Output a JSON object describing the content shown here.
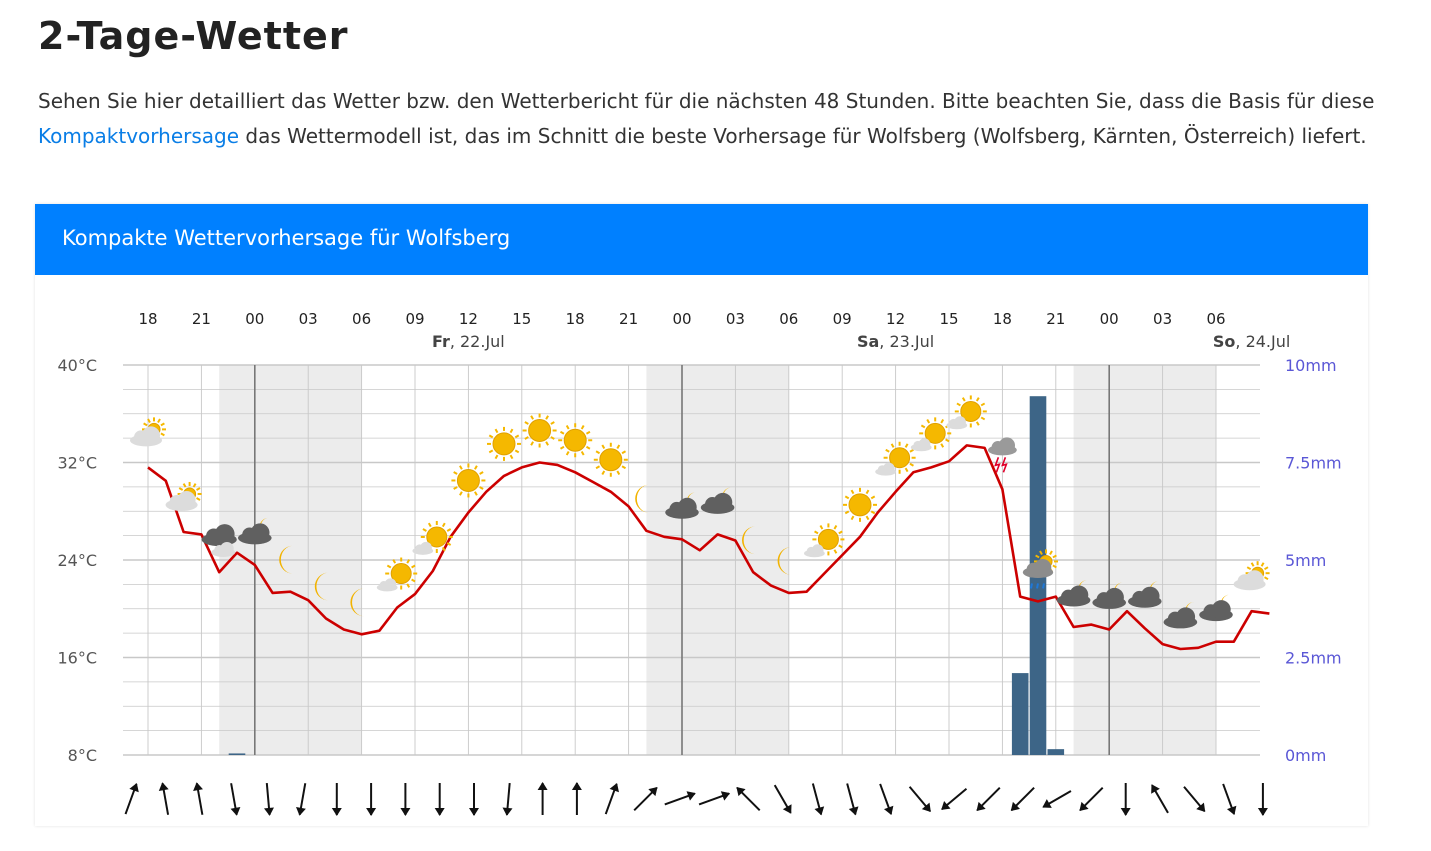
{
  "page": {
    "title": "2-Tage-Wetter",
    "intro_before": "Sehen Sie hier detailliert das Wetter bzw. den Wetterbericht für die nächsten 48 Stunden. Bitte beachten Sie, dass die Basis für diese ",
    "intro_link": "Kompaktvorhersage",
    "intro_after": " das Wettermodell ist, das im Schnitt die beste Vorhersage für Wolfsberg (Wolfsberg, Kärnten, Österreich) liefert."
  },
  "chart_header": "Kompakte Wettervorhersage für Wolfsberg",
  "colors": {
    "header_blue": "#0080ff",
    "link_blue": "#0a7ee6",
    "temp_line": "#cc0000",
    "precip_bar": "#3d6587",
    "night_band": "#ececec",
    "grid": "#c8c8c8",
    "right_axis_text": "#5a57d6",
    "sun": "#f5b800",
    "moon": "#f2b300",
    "cloud_dark": "#606060",
    "cloud_light": "#dcdcdc"
  },
  "chart_data": {
    "type": "line",
    "hour_labels": [
      "18",
      "21",
      "00",
      "03",
      "06",
      "09",
      "12",
      "15",
      "18",
      "21",
      "00",
      "03",
      "06",
      "09",
      "12",
      "15",
      "18",
      "21",
      "00",
      "03",
      "06"
    ],
    "day_labels": [
      {
        "day": "Fr",
        "date": ", 22.Jul"
      },
      {
        "day": "Sa",
        "date": ", 23.Jul"
      },
      {
        "day": "So",
        "date": ", 24.Jul"
      }
    ],
    "temp_axis": {
      "ticks": [
        "40°C",
        "32°C",
        "24°C",
        "16°C",
        "8°C"
      ],
      "range": [
        8,
        40
      ],
      "unit": "°C"
    },
    "precip_axis": {
      "ticks": [
        "10mm",
        "7.5mm",
        "5mm",
        "2.5mm",
        "0mm"
      ],
      "range": [
        0,
        10
      ],
      "unit": "mm"
    },
    "temperature_hourly": [
      31.6,
      30.5,
      26.3,
      26.1,
      23.0,
      24.6,
      23.6,
      21.3,
      21.4,
      20.7,
      19.2,
      18.3,
      17.9,
      18.2,
      20.1,
      21.2,
      23.1,
      25.9,
      27.9,
      29.6,
      30.9,
      31.6,
      32.0,
      31.8,
      31.2,
      30.4,
      29.6,
      28.4,
      26.4,
      25.9,
      25.7,
      24.8,
      26.1,
      25.6,
      23.0,
      21.9,
      21.3,
      21.4,
      22.9,
      24.4,
      25.9,
      27.9,
      29.6,
      31.2,
      31.6,
      32.1,
      33.4,
      33.2,
      29.8,
      21.0,
      20.6,
      21.0,
      18.5,
      18.7,
      18.3,
      19.8,
      18.4,
      17.1,
      16.7,
      16.8,
      17.3,
      17.3,
      19.8,
      19.6
    ],
    "precipitation_hourly_mm": [
      0,
      0,
      0,
      0,
      0,
      0.04,
      0,
      0,
      0,
      0,
      0,
      0,
      0,
      0,
      0,
      0,
      0,
      0,
      0,
      0,
      0,
      0,
      0,
      0,
      0,
      0,
      0,
      0,
      0,
      0,
      0,
      0,
      0,
      0,
      0,
      0,
      0,
      0,
      0,
      0,
      0,
      0,
      0,
      0,
      0,
      0,
      0,
      0,
      0,
      2.1,
      9.2,
      0.15,
      0,
      0,
      0,
      0,
      0,
      0,
      0,
      0,
      0,
      0,
      0,
      0
    ],
    "night_periods": [
      [
        4,
        12
      ],
      [
        28,
        36
      ],
      [
        52,
        60
      ]
    ],
    "weather_symbols": [
      {
        "h": 0,
        "icon": "partly-cloudy-sun"
      },
      {
        "h": 2,
        "icon": "partly-cloudy-sun"
      },
      {
        "h": 4,
        "icon": "cloudy"
      },
      {
        "h": 6,
        "icon": "cloudy-night"
      },
      {
        "h": 8,
        "icon": "moon"
      },
      {
        "h": 10,
        "icon": "moon"
      },
      {
        "h": 12,
        "icon": "moon"
      },
      {
        "h": 14,
        "icon": "sun-light-cloud"
      },
      {
        "h": 16,
        "icon": "sun-light-cloud"
      },
      {
        "h": 18,
        "icon": "sun"
      },
      {
        "h": 20,
        "icon": "sun"
      },
      {
        "h": 22,
        "icon": "sun"
      },
      {
        "h": 24,
        "icon": "sun"
      },
      {
        "h": 26,
        "icon": "sun"
      },
      {
        "h": 28,
        "icon": "moon"
      },
      {
        "h": 30,
        "icon": "cloudy-night"
      },
      {
        "h": 32,
        "icon": "cloudy-night"
      },
      {
        "h": 34,
        "icon": "moon"
      },
      {
        "h": 36,
        "icon": "moon"
      },
      {
        "h": 38,
        "icon": "sun-light-cloud"
      },
      {
        "h": 40,
        "icon": "sun"
      },
      {
        "h": 42,
        "icon": "sun-light-cloud"
      },
      {
        "h": 44,
        "icon": "sun-light-cloud"
      },
      {
        "h": 46,
        "icon": "sun-light-cloud"
      },
      {
        "h": 48,
        "icon": "thunderstorm"
      },
      {
        "h": 50,
        "icon": "rain-shower-sun"
      },
      {
        "h": 52,
        "icon": "cloudy-night"
      },
      {
        "h": 54,
        "icon": "cloudy-night"
      },
      {
        "h": 56,
        "icon": "cloudy-night"
      },
      {
        "h": 58,
        "icon": "cloudy-night"
      },
      {
        "h": 60,
        "icon": "cloudy-night"
      },
      {
        "h": 62,
        "icon": "partly-cloudy-sun"
      }
    ],
    "wind_directions_deg": [
      200,
      170,
      170,
      350,
      355,
      10,
      0,
      0,
      0,
      0,
      0,
      5,
      180,
      180,
      200,
      225,
      250,
      250,
      135,
      330,
      345,
      345,
      340,
      320,
      50,
      45,
      45,
      60,
      45,
      0,
      150,
      320,
      340,
      0
    ]
  }
}
